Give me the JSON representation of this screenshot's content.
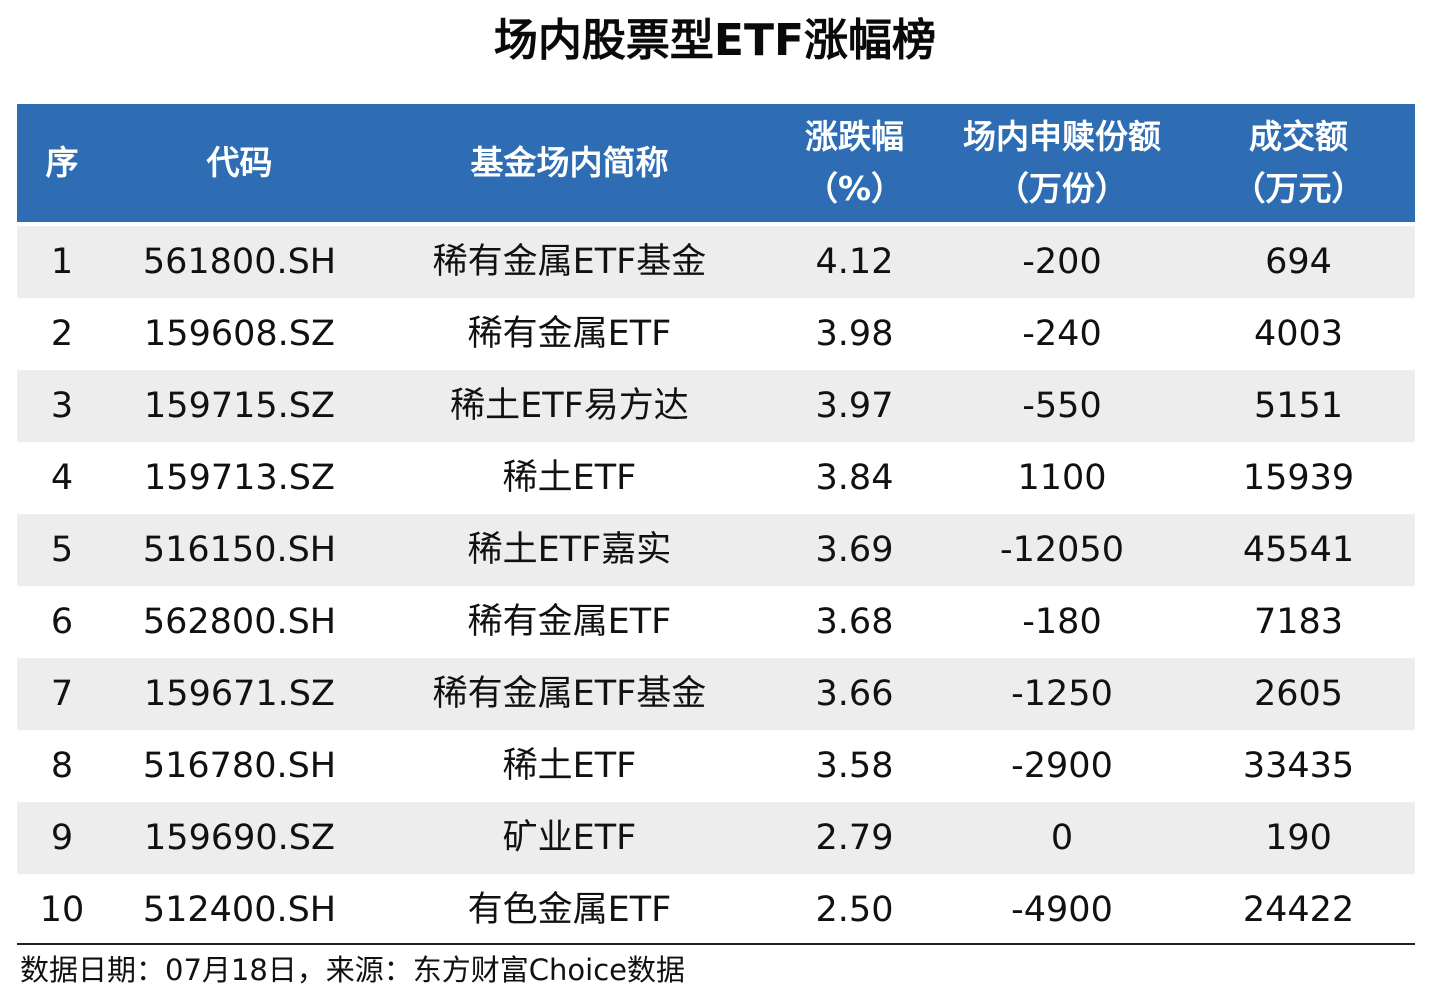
{
  "title": "场内股票型ETF涨幅榜",
  "columns": [
    {
      "line1": "序",
      "line2": ""
    },
    {
      "line1": "代码",
      "line2": ""
    },
    {
      "line1": "基金场内简称",
      "line2": ""
    },
    {
      "line1": "涨跌幅",
      "line2": "（%）"
    },
    {
      "line1": "场内申赎份额",
      "line2": "（万份）"
    },
    {
      "line1": "成交额",
      "line2": "（万元）"
    }
  ],
  "rows": [
    {
      "rank": "1",
      "code": "561800.SH",
      "name": "稀有金属ETF基金",
      "change": "4.12",
      "units": "-200",
      "turnover": "694"
    },
    {
      "rank": "2",
      "code": "159608.SZ",
      "name": "稀有金属ETF",
      "change": "3.98",
      "units": "-240",
      "turnover": "4003"
    },
    {
      "rank": "3",
      "code": "159715.SZ",
      "name": "稀土ETF易方达",
      "change": "3.97",
      "units": "-550",
      "turnover": "5151"
    },
    {
      "rank": "4",
      "code": "159713.SZ",
      "name": "稀土ETF",
      "change": "3.84",
      "units": "1100",
      "turnover": "15939"
    },
    {
      "rank": "5",
      "code": "516150.SH",
      "name": "稀土ETF嘉实",
      "change": "3.69",
      "units": "-12050",
      "turnover": "45541"
    },
    {
      "rank": "6",
      "code": "562800.SH",
      "name": "稀有金属ETF",
      "change": "3.68",
      "units": "-180",
      "turnover": "7183"
    },
    {
      "rank": "7",
      "code": "159671.SZ",
      "name": "稀有金属ETF基金",
      "change": "3.66",
      "units": "-1250",
      "turnover": "2605"
    },
    {
      "rank": "8",
      "code": "516780.SH",
      "name": "稀土ETF",
      "change": "3.58",
      "units": "-2900",
      "turnover": "33435"
    },
    {
      "rank": "9",
      "code": "159690.SZ",
      "name": "矿业ETF",
      "change": "2.79",
      "units": "0",
      "turnover": "190"
    },
    {
      "rank": "10",
      "code": "512400.SH",
      "name": "有色金属ETF",
      "change": "2.50",
      "units": "-4900",
      "turnover": "24422"
    }
  ],
  "footnote": "数据日期：07月18日，来源：东方财富Choice数据",
  "colors": {
    "header_bg": "#2e6db4",
    "stripe_bg": "#ededed"
  }
}
